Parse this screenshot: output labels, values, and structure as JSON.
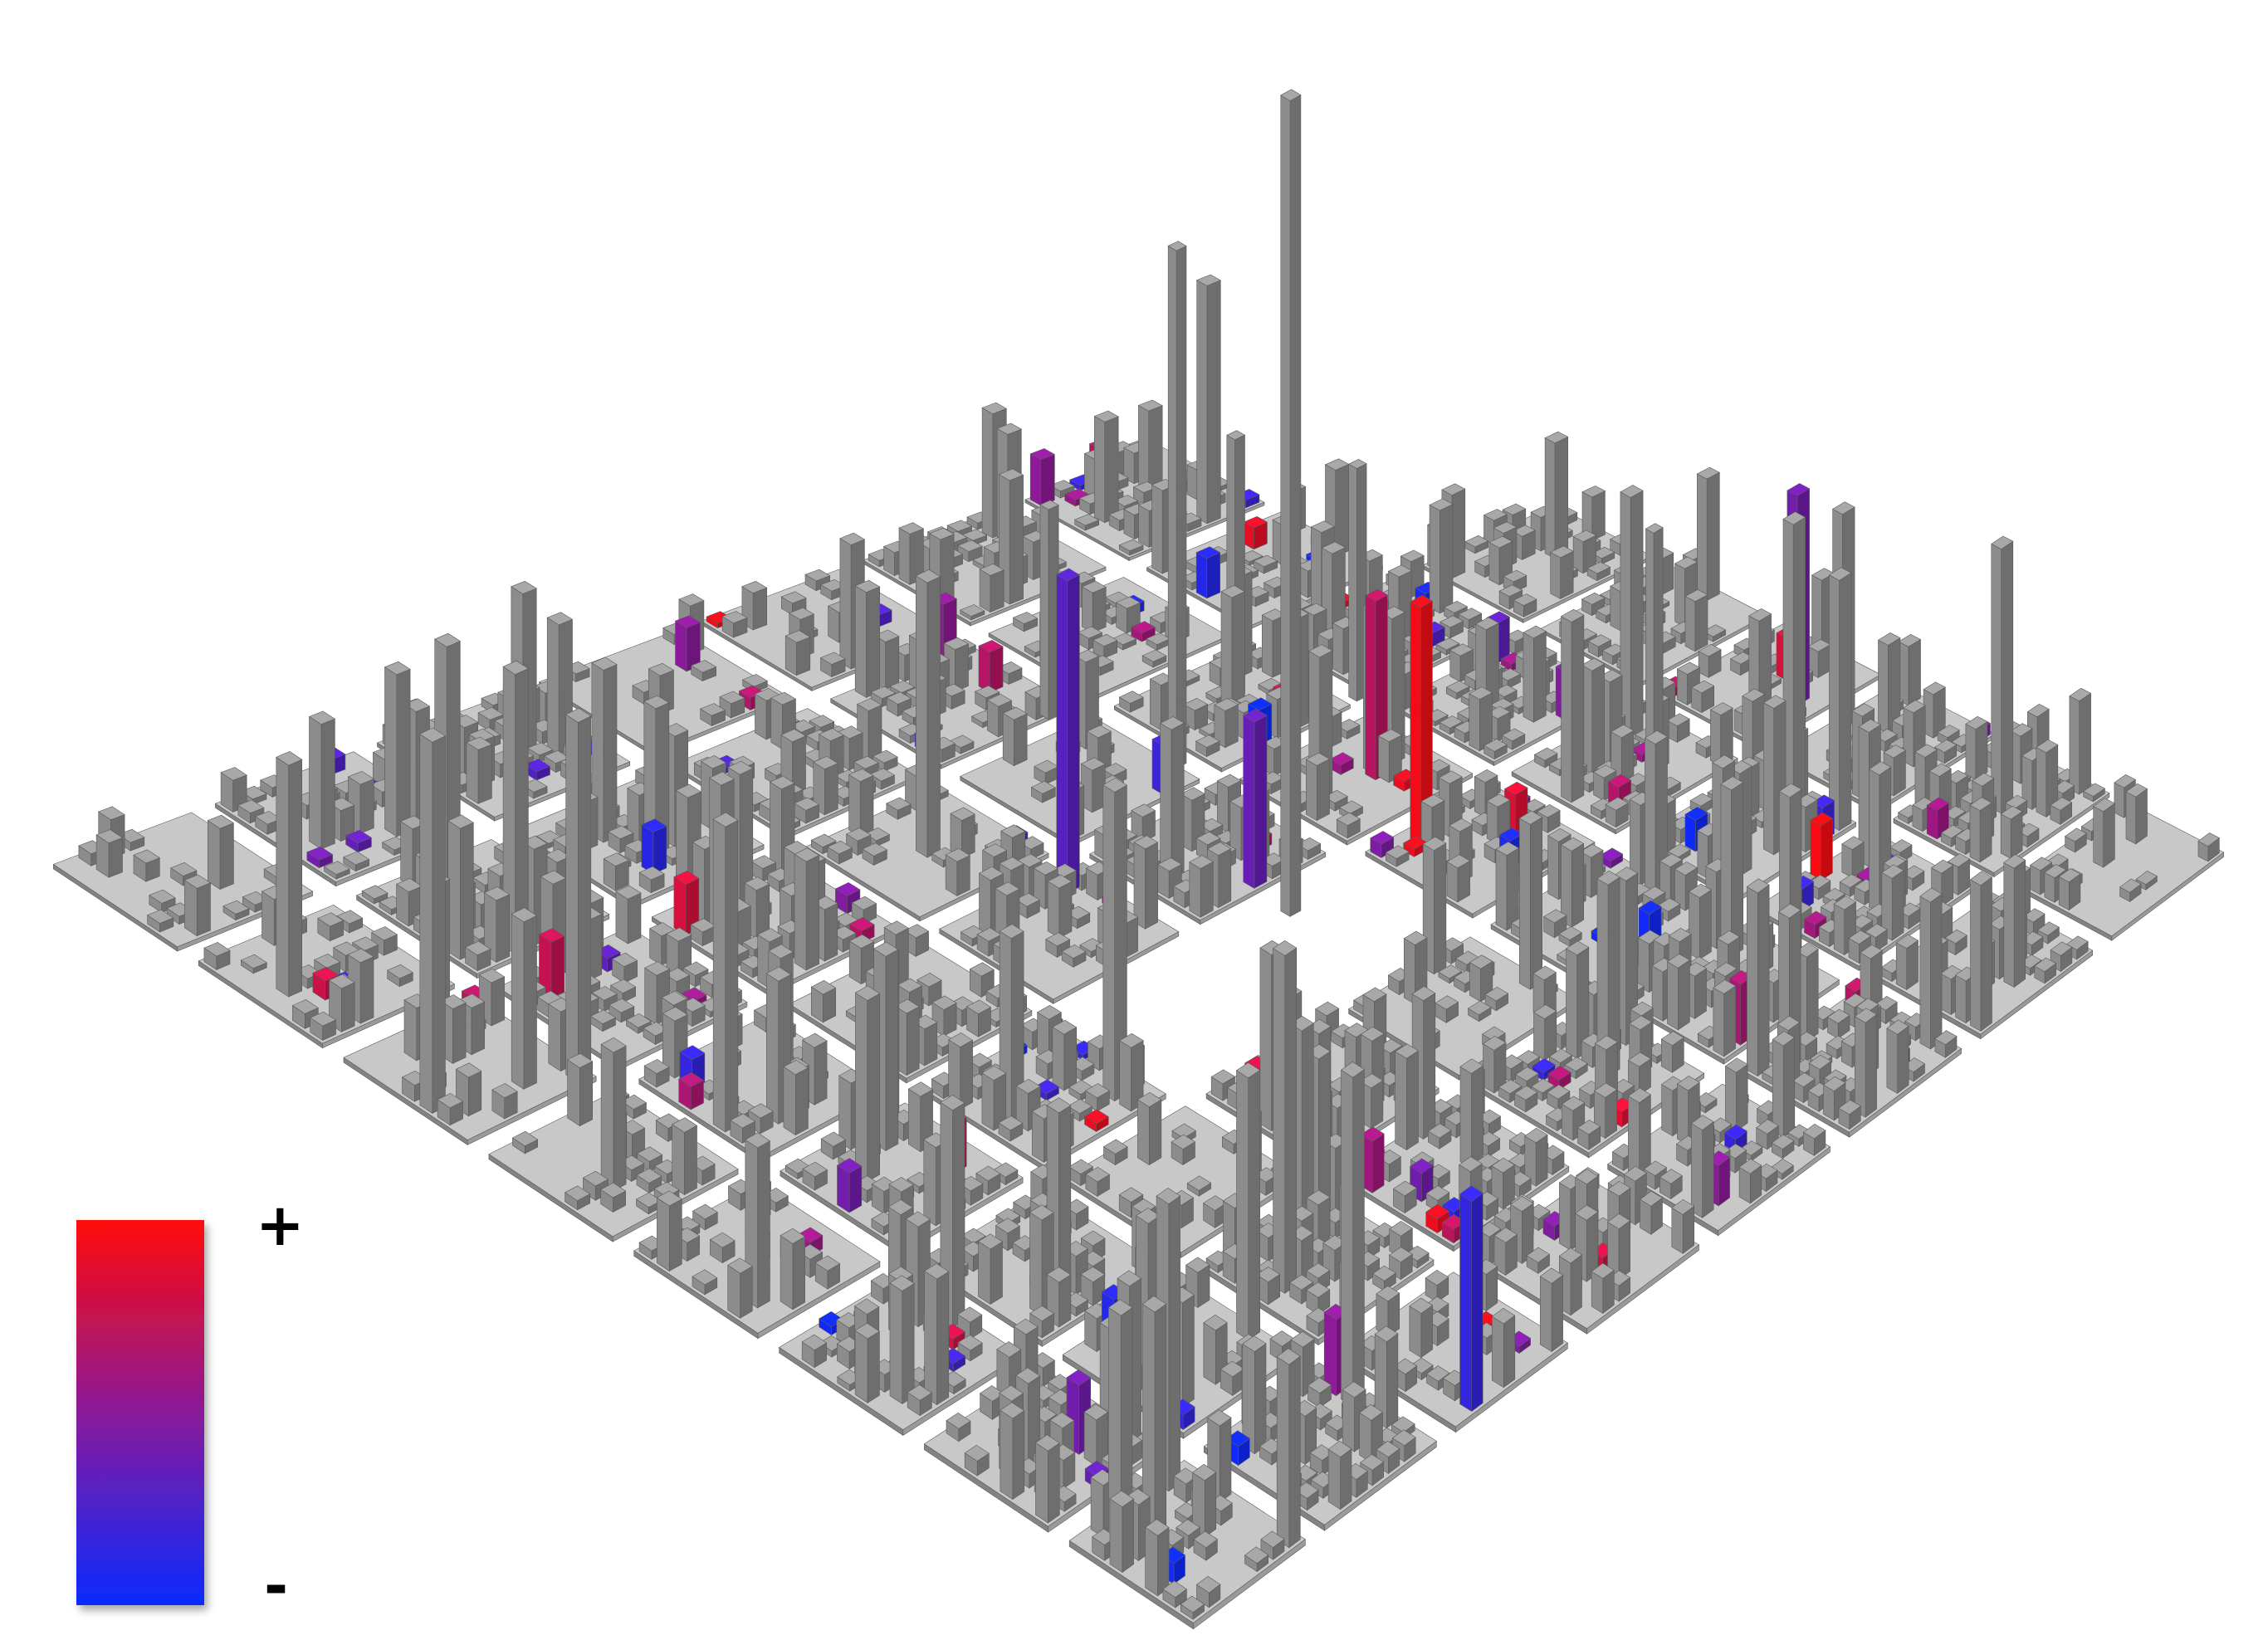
{
  "legend": {
    "max_label": "+",
    "min_label": "-",
    "max_color": "#ff0a0a",
    "mid_color": "#8a1a9a",
    "min_color": "#0a2aff"
  },
  "palette": {
    "plate": "#c8c8c8",
    "plate_side": "#9a9a9a",
    "building": "#8c8c8c",
    "building_top": "#a8a8a8",
    "building_side": "#6e6e6e"
  }
}
